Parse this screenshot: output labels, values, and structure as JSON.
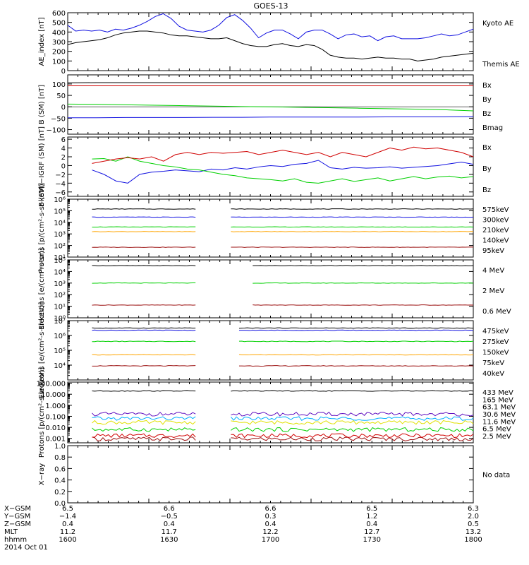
{
  "title": "GOES-13",
  "colors": {
    "black": "#000000",
    "blue": "#1010e0",
    "green": "#00d000",
    "red": "#d00000",
    "orange": "#ffa500",
    "yellow": "#e0e000",
    "cyan": "#00b0ff",
    "purple": "#6010c0",
    "darkred": "#9b1010"
  },
  "chart_data": [
    {
      "type": "line",
      "ylabel": "AE_index [nT]",
      "ylim": [
        0,
        600
      ],
      "yticks": [
        0,
        100,
        200,
        300,
        400,
        500,
        600
      ],
      "ytick_labels": [
        "0",
        "100",
        "200",
        "300",
        "400",
        "500",
        "600"
      ],
      "log": false,
      "series": [
        {
          "name": "Kyoto AE",
          "color": "blue",
          "values": [
            470,
            410,
            420,
            410,
            420,
            400,
            430,
            420,
            440,
            470,
            510,
            560,
            590,
            540,
            460,
            420,
            410,
            400,
            420,
            470,
            550,
            580,
            520,
            440,
            340,
            390,
            420,
            420,
            380,
            330,
            400,
            420,
            420,
            380,
            330,
            370,
            380,
            350,
            360,
            310,
            350,
            360,
            330,
            330,
            330,
            340,
            360,
            380,
            360,
            370,
            400,
            430
          ]
        },
        {
          "name": "Themis AE",
          "color": "black",
          "values": [
            270,
            290,
            300,
            310,
            320,
            340,
            370,
            390,
            400,
            410,
            410,
            400,
            390,
            370,
            360,
            360,
            350,
            340,
            330,
            330,
            340,
            310,
            280,
            260,
            250,
            250,
            270,
            280,
            260,
            250,
            270,
            260,
            220,
            160,
            140,
            130,
            130,
            120,
            130,
            140,
            130,
            130,
            120,
            120,
            100,
            110,
            120,
            140,
            150,
            160,
            170,
            180
          ]
        }
      ]
    },
    {
      "type": "line",
      "ylabel": "B (SM) [nT]",
      "ylim": [
        -120,
        140
      ],
      "yticks": [
        -100,
        -50,
        0,
        50,
        100
      ],
      "ytick_labels": [
        "−100",
        "−50",
        "0",
        "50",
        "100"
      ],
      "log": false,
      "zero_line": true,
      "series": [
        {
          "name": "Bx",
          "color": "blue",
          "values": [
            -48,
            -48,
            -47,
            -47,
            -47,
            -46,
            -46,
            -45,
            -45,
            -45,
            -45,
            -44,
            -44,
            -44,
            -43
          ]
        },
        {
          "name": "By",
          "color": "green",
          "values": [
            12,
            11,
            9,
            7,
            5,
            3,
            1,
            0,
            -2,
            -4,
            -6,
            -8,
            -10,
            -13,
            -18
          ]
        },
        {
          "name": "Bz",
          "color": "red",
          "values": [
            92,
            92,
            92,
            92,
            92,
            92,
            92,
            92,
            92,
            92,
            92,
            92,
            92,
            92,
            92
          ]
        },
        {
          "name": "Bmag",
          "color": "black",
          "values": [
            105,
            106,
            106,
            106,
            106,
            106,
            106,
            106,
            106,
            106,
            106,
            106,
            106,
            106,
            106
          ]
        }
      ]
    },
    {
      "type": "line",
      "ylabel": "B (SM)−IGRF (SM) [nT]",
      "ylim": [
        -7,
        6.5
      ],
      "yticks": [
        -6,
        -4,
        -2,
        0,
        2,
        4,
        6
      ],
      "ytick_labels": [
        "−6",
        "−4",
        "−2",
        "0",
        "2",
        "4",
        "6"
      ],
      "log": false,
      "series": [
        {
          "name": "Bx",
          "color": "blue",
          "values": [
            -1.0,
            -2.0,
            -3.5,
            -4.0,
            -2.0,
            -1.5,
            -1.3,
            -1.0,
            -1.2,
            -1.4,
            -0.8,
            -1.0,
            -0.5,
            -0.8,
            -0.3,
            0.0,
            -0.2,
            0.3,
            0.5,
            1.2,
            -0.5,
            -0.8,
            -0.4,
            -0.6,
            -0.5,
            -0.3,
            -0.6,
            -0.4,
            -0.2,
            0.0,
            0.4,
            0.8,
            0.3
          ]
        },
        {
          "name": "By",
          "color": "green",
          "values": [
            1.5,
            1.6,
            1.0,
            2.0,
            1.0,
            0.5,
            0.0,
            -0.3,
            -0.8,
            -1.0,
            -1.5,
            -2.0,
            -2.3,
            -2.8,
            -3.0,
            -3.2,
            -3.5,
            -3.0,
            -3.8,
            -4.0,
            -3.5,
            -3.0,
            -3.6,
            -3.2,
            -2.8,
            -3.5,
            -3.0,
            -2.5,
            -3.0,
            -2.6,
            -2.4,
            -2.8,
            -2.5
          ]
        },
        {
          "name": "Bz",
          "color": "red",
          "values": [
            0.5,
            1.0,
            1.5,
            1.8,
            1.5,
            2.0,
            1.0,
            2.5,
            3.0,
            2.5,
            3.0,
            2.8,
            3.0,
            3.2,
            2.5,
            3.0,
            3.5,
            3.0,
            2.5,
            3.0,
            2.0,
            3.0,
            2.5,
            2.0,
            3.0,
            4.0,
            3.5,
            4.2,
            3.8,
            4.0,
            3.5,
            3.0,
            2.0
          ]
        }
      ]
    },
    {
      "type": "line",
      "ylabel": "Protons [p/(cm²-s-sr-keV)]",
      "log": true,
      "ylim_exp": [
        1,
        6
      ],
      "yticks_exp": [
        1,
        2,
        3,
        4,
        5,
        6
      ],
      "ytick_labels": [
        "10¹",
        "10²",
        "10³",
        "10⁴",
        "10⁵",
        "10⁶"
      ],
      "gaps": [
        [
          0.32,
          0.4
        ]
      ],
      "series": [
        {
          "name": "575keV",
          "color": "darkred",
          "level_exp": 1.85
        },
        {
          "name": "300keV",
          "color": "orange",
          "level_exp": 3.2
        },
        {
          "name": "210keV",
          "color": "green",
          "level_exp": 3.6
        },
        {
          "name": "140keV",
          "color": "blue",
          "level_exp": 4.45
        },
        {
          "name": "95keV",
          "color": "black",
          "level_exp": 5.15
        }
      ]
    },
    {
      "type": "line",
      "ylabel": "Electrons [e/(cm²-s-sr)]",
      "log": true,
      "ylim_exp": [
        0,
        5
      ],
      "yticks_exp": [
        0,
        1,
        2,
        3,
        4,
        5
      ],
      "ytick_labels": [
        "10⁰",
        "10¹",
        "10²",
        "10³",
        "10⁴",
        "10⁵"
      ],
      "gaps": [
        [
          0.32,
          0.45
        ]
      ],
      "series": [
        {
          "name": "4 MeV",
          "color": "darkred",
          "level_exp": 1.1
        },
        {
          "name": "2 MeV",
          "color": "green",
          "level_exp": 3.0
        },
        {
          "name": "0.6 MeV",
          "color": "black",
          "level_exp": 4.5
        }
      ]
    },
    {
      "type": "line",
      "ylabel": "Electrons [e/(cm²-s-sr-keV)]",
      "log": true,
      "ylim_exp": [
        3,
        7
      ],
      "yticks_exp": [
        4,
        5,
        6,
        7
      ],
      "ytick_labels": [
        "10⁴",
        "10⁵",
        "10⁶",
        "10⁷"
      ],
      "gaps": [
        [
          0.32,
          0.42
        ]
      ],
      "series": [
        {
          "name": "475keV",
          "color": "darkred",
          "level_exp": 3.95
        },
        {
          "name": "275keV",
          "color": "orange",
          "level_exp": 4.7
        },
        {
          "name": "150keV",
          "color": "green",
          "level_exp": 5.6
        },
        {
          "name": "75keV",
          "color": "blue",
          "level_exp": 6.35
        },
        {
          "name": "40keV",
          "color": "black",
          "level_exp": 6.5
        }
      ]
    },
    {
      "type": "line",
      "ylabel": "Protons [p/(cm²-s-sr-keV)]",
      "log": true,
      "ylim_exp": [
        -3.4,
        2.1
      ],
      "yticks_exp": [
        -3,
        -2,
        -1,
        0,
        1,
        2
      ],
      "ytick_labels": [
        "0.001",
        "0.010",
        "0.100",
        "1.000",
        "10.000",
        "100.000"
      ],
      "gaps": [
        [
          0.32,
          0.4
        ]
      ],
      "series": [
        {
          "name": "433 MeV",
          "color": "darkred",
          "level_exp": -3.05
        },
        {
          "name": "165 MeV",
          "color": "red",
          "level_exp": -2.75
        },
        {
          "name": "63.1 MeV",
          "color": "yellow",
          "level_exp": -1.55
        },
        {
          "name": "30.6 MeV",
          "color": "green",
          "level_exp": -2.2
        },
        {
          "name": "11.6 MeV",
          "color": "cyan",
          "level_exp": -1.2
        },
        {
          "name": "6.5 MeV",
          "color": "purple",
          "level_exp": -0.8
        },
        {
          "name": "2.5 MeV",
          "color": "black",
          "level_exp": 1.3
        }
      ]
    },
    {
      "type": "line",
      "ylabel": "X−ray",
      "ylim": [
        0,
        1.0
      ],
      "yticks": [
        0,
        0.2,
        0.4,
        0.6,
        0.8,
        1.0
      ],
      "ytick_labels": [
        "0.0",
        "0.2",
        "0.4",
        "0.6",
        "0.8",
        "1.0"
      ],
      "log": false,
      "note": "No data",
      "series": []
    }
  ],
  "ephemeris": {
    "labels": [
      "X−GSM",
      "Y−GSM",
      "Z−GSM",
      "MLT",
      "hhmm",
      "2014 Oct 01"
    ],
    "columns": [
      [
        "6.5",
        "−1.4",
        "0.4",
        "11.2",
        "1600"
      ],
      [
        "6.6",
        "−0.5",
        "0.4",
        "11.7",
        "1630"
      ],
      [
        "6.6",
        "0.3",
        "0.4",
        "12.2",
        "1700"
      ],
      [
        "6.5",
        "1.2",
        "0.4",
        "12.7",
        "1730"
      ],
      [
        "6.3",
        "2.0",
        "0.5",
        "13.2",
        "1800"
      ]
    ]
  }
}
